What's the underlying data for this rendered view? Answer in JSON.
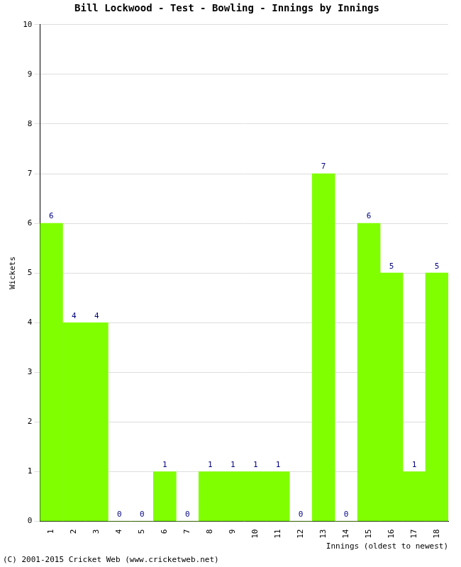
{
  "chart_data": {
    "type": "bar",
    "title": "Bill Lockwood - Test - Bowling - Innings by Innings",
    "y_label": "Wickets",
    "x_label": "Innings (oldest to newest)",
    "annotations": [
      "(C) 2001-2015 Cricket Web (www.cricketweb.net)"
    ],
    "categories": [
      "1",
      "2",
      "3",
      "4",
      "5",
      "6",
      "7",
      "8",
      "9",
      "10",
      "11",
      "12",
      "13",
      "14",
      "15",
      "16",
      "17",
      "18"
    ],
    "values": [
      6,
      4,
      4,
      0,
      0,
      1,
      0,
      1,
      1,
      1,
      1,
      0,
      7,
      0,
      6,
      5,
      1,
      5
    ],
    "color": "#80ff00",
    "ylim": [
      0,
      10
    ],
    "yticks": [
      0,
      1,
      2,
      3,
      4,
      5,
      6,
      7,
      8,
      9,
      10
    ],
    "grid": true,
    "data_labels": true
  }
}
